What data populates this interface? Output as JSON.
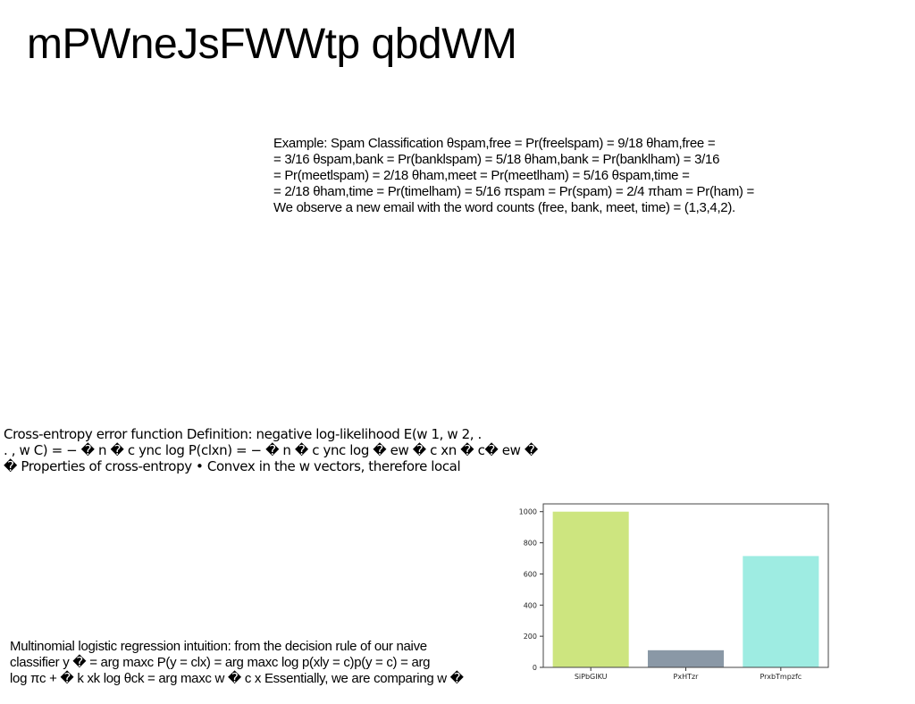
{
  "page": {
    "title": "mPWneJsFWWtp qbdWM"
  },
  "text_blocks": {
    "spam_example": [
      "Example: Spam Classification θspam,free = Pr(freelspam) = 9/18 θham,free =",
      "= 3/16 θspam,bank = Pr(banklspam) = 5/18 θham,bank = Pr(banklham) = 3/16",
      "= Pr(meetlspam) = 2/18 θham,meet = Pr(meetlham) = 5/16 θspam,time =",
      "= 2/18 θham,time = Pr(timelham) = 5/16 πspam = Pr(spam) = 2/4 πham = Pr(ham) =",
      "We observe a new email with the word counts (free, bank, meet, time) = (1,3,4,2)."
    ],
    "cross_entropy": [
      "Cross-entropy error function Definition: negative log-likelihood E(w 1, w 2, .",
      ". , w C) = − � n � c ync log P(clxn) = − � n � c ync log � ew � c xn � c� ew �",
      "� Properties of cross-entropy • Convex in the w vectors, therefore local"
    ],
    "multinomial": [
      "Multinomial logistic regression intuition: from the decision rule of our naive",
      "classifier y � = arg maxc P(y = clx) = arg maxc log p(xly = c)p(y = c) = arg",
      "log πc + � k xk log θck = arg maxc w � c x Essentially, we are comparing w �"
    ]
  },
  "chart_data": {
    "type": "bar",
    "categories": [
      "SiPbGIKU",
      "PxHTzr",
      "PrxbTmpzfc"
    ],
    "values": [
      1000,
      110,
      715
    ],
    "colors": [
      "#cde57f",
      "#8a98a6",
      "#9eece2"
    ],
    "ylim": [
      0,
      1050
    ],
    "yticks": [
      0,
      200,
      400,
      600,
      800,
      1000
    ],
    "grid": false,
    "title": "",
    "xlabel": "",
    "ylabel": ""
  }
}
